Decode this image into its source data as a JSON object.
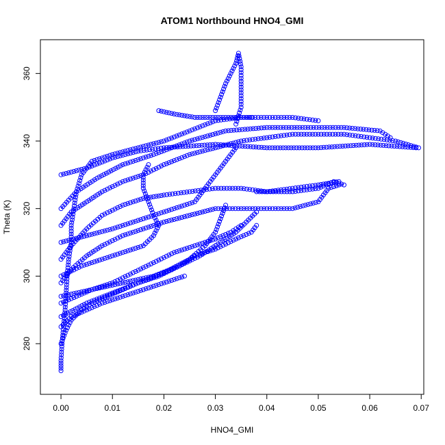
{
  "chart_data": {
    "type": "scatter",
    "title": "ATOM1 Northbound HNO4_GMI",
    "xlabel": "HNO4_GMI",
    "ylabel": "Theta (K)",
    "xlim": [
      -0.004,
      0.0705
    ],
    "ylim": [
      265,
      370
    ],
    "x_ticks": [
      0.0,
      0.01,
      0.02,
      0.03,
      0.04,
      0.05,
      0.06,
      0.07
    ],
    "x_tick_labels": [
      "0.00",
      "0.01",
      "0.02",
      "0.03",
      "0.04",
      "0.05",
      "0.06",
      "0.07"
    ],
    "y_ticks": [
      280,
      300,
      320,
      340,
      360
    ],
    "y_tick_labels": [
      "280",
      "300",
      "320",
      "340",
      "360"
    ],
    "grid": false,
    "marker": "open-circle",
    "color": "#0000ff",
    "series": [
      {
        "values": [
          [
            0.0,
            272
          ],
          [
            0.0,
            275
          ],
          [
            0.0002,
            280
          ],
          [
            0.0005,
            285
          ],
          [
            0.0008,
            290
          ],
          [
            0.001,
            295
          ],
          [
            0.0012,
            300
          ],
          [
            0.0015,
            305
          ],
          [
            0.002,
            310
          ],
          [
            0.002,
            315
          ],
          [
            0.0025,
            320
          ],
          [
            0.003,
            325
          ],
          [
            0.004,
            330
          ],
          [
            0.006,
            334
          ],
          [
            0.01,
            336
          ],
          [
            0.015,
            338
          ],
          [
            0.02,
            340
          ],
          [
            0.025,
            343
          ],
          [
            0.03,
            346
          ],
          [
            0.035,
            347
          ],
          [
            0.04,
            347
          ],
          [
            0.045,
            347
          ],
          [
            0.05,
            346
          ]
        ]
      },
      {
        "values": [
          [
            0.0,
            280
          ],
          [
            0.001,
            284
          ],
          [
            0.002,
            287
          ],
          [
            0.004,
            290
          ],
          [
            0.006,
            292
          ],
          [
            0.009,
            294
          ],
          [
            0.012,
            296
          ],
          [
            0.015,
            298
          ],
          [
            0.019,
            300
          ],
          [
            0.023,
            303
          ],
          [
            0.027,
            306
          ],
          [
            0.031,
            310
          ],
          [
            0.034,
            313
          ],
          [
            0.036,
            316
          ],
          [
            0.038,
            319
          ]
        ]
      },
      {
        "values": [
          [
            0.0,
            292
          ],
          [
            0.003,
            294
          ],
          [
            0.006,
            296
          ],
          [
            0.01,
            298
          ],
          [
            0.014,
            301
          ],
          [
            0.018,
            304
          ],
          [
            0.022,
            307
          ],
          [
            0.026,
            309
          ],
          [
            0.03,
            311
          ],
          [
            0.033,
            313
          ],
          [
            0.035,
            315
          ]
        ]
      },
      {
        "values": [
          [
            0.0,
            298
          ],
          [
            0.002,
            302
          ],
          [
            0.005,
            306
          ],
          [
            0.008,
            309
          ],
          [
            0.012,
            312
          ],
          [
            0.016,
            314
          ],
          [
            0.02,
            316
          ],
          [
            0.025,
            318
          ],
          [
            0.03,
            320
          ],
          [
            0.035,
            320
          ],
          [
            0.04,
            320
          ],
          [
            0.045,
            320
          ],
          [
            0.05,
            322
          ],
          [
            0.052,
            326
          ],
          [
            0.054,
            327
          ]
        ]
      },
      {
        "values": [
          [
            0.0,
            305
          ],
          [
            0.002,
            309
          ],
          [
            0.005,
            314
          ],
          [
            0.008,
            318
          ],
          [
            0.012,
            321
          ],
          [
            0.016,
            323
          ],
          [
            0.02,
            324
          ],
          [
            0.025,
            325
          ],
          [
            0.03,
            326
          ],
          [
            0.035,
            326
          ],
          [
            0.04,
            325
          ],
          [
            0.045,
            326
          ],
          [
            0.05,
            327
          ],
          [
            0.054,
            328
          ]
        ]
      },
      {
        "values": [
          [
            0.0,
            315
          ],
          [
            0.002,
            319
          ],
          [
            0.005,
            322
          ],
          [
            0.008,
            325
          ],
          [
            0.012,
            328
          ],
          [
            0.016,
            330
          ],
          [
            0.02,
            333
          ],
          [
            0.025,
            336
          ],
          [
            0.03,
            338
          ],
          [
            0.035,
            340
          ],
          [
            0.04,
            341
          ],
          [
            0.045,
            342
          ],
          [
            0.05,
            342
          ],
          [
            0.055,
            342
          ],
          [
            0.06,
            341
          ],
          [
            0.065,
            340
          ],
          [
            0.0695,
            338
          ]
        ]
      },
      {
        "values": [
          [
            0.0,
            320
          ],
          [
            0.003,
            325
          ],
          [
            0.007,
            329
          ],
          [
            0.012,
            333
          ],
          [
            0.018,
            336
          ],
          [
            0.025,
            340
          ],
          [
            0.032,
            343
          ],
          [
            0.04,
            344
          ],
          [
            0.048,
            344
          ],
          [
            0.055,
            344
          ],
          [
            0.062,
            343
          ],
          [
            0.064,
            341
          ]
        ]
      },
      {
        "values": [
          [
            0.0,
            300
          ],
          [
            0.004,
            303
          ],
          [
            0.008,
            305
          ],
          [
            0.012,
            307
          ],
          [
            0.016,
            309
          ],
          [
            0.018,
            312
          ],
          [
            0.019,
            315
          ],
          [
            0.018,
            318
          ],
          [
            0.017,
            322
          ],
          [
            0.016,
            326
          ],
          [
            0.016,
            330
          ],
          [
            0.017,
            333
          ]
        ]
      },
      {
        "values": [
          [
            0.0,
            310
          ],
          [
            0.005,
            312
          ],
          [
            0.01,
            314
          ],
          [
            0.014,
            316
          ],
          [
            0.018,
            318
          ],
          [
            0.022,
            320
          ],
          [
            0.026,
            322
          ],
          [
            0.028,
            326
          ],
          [
            0.03,
            330
          ],
          [
            0.032,
            334
          ],
          [
            0.034,
            338
          ]
        ]
      },
      {
        "values": [
          [
            0.0,
            288
          ],
          [
            0.005,
            292
          ],
          [
            0.01,
            295
          ],
          [
            0.015,
            298
          ],
          [
            0.02,
            301
          ],
          [
            0.025,
            305
          ],
          [
            0.028,
            309
          ],
          [
            0.03,
            313
          ],
          [
            0.031,
            317
          ],
          [
            0.032,
            321
          ]
        ]
      },
      {
        "values": [
          [
            0.019,
            349
          ],
          [
            0.022,
            348
          ],
          [
            0.026,
            347
          ],
          [
            0.03,
            347
          ],
          [
            0.033,
            347
          ],
          [
            0.037,
            347
          ]
        ]
      },
      {
        "values": [
          [
            0.03,
            349
          ],
          [
            0.031,
            353
          ],
          [
            0.032,
            357
          ],
          [
            0.033,
            360
          ],
          [
            0.034,
            363
          ],
          [
            0.0345,
            366
          ],
          [
            0.035,
            362
          ],
          [
            0.035,
            356
          ],
          [
            0.035,
            350
          ],
          [
            0.034,
            345
          ]
        ]
      },
      {
        "values": [
          [
            0.038,
            325
          ],
          [
            0.045,
            325
          ],
          [
            0.05,
            326
          ],
          [
            0.053,
            328
          ],
          [
            0.055,
            327
          ]
        ]
      },
      {
        "values": [
          [
            0.0,
            330
          ],
          [
            0.005,
            332
          ],
          [
            0.01,
            335
          ],
          [
            0.015,
            337
          ],
          [
            0.02,
            338
          ],
          [
            0.03,
            339
          ],
          [
            0.04,
            338
          ],
          [
            0.05,
            338
          ],
          [
            0.06,
            339
          ],
          [
            0.069,
            338
          ]
        ]
      },
      {
        "values": [
          [
            0.0,
            294
          ],
          [
            0.006,
            296
          ],
          [
            0.012,
            298
          ],
          [
            0.018,
            300
          ],
          [
            0.023,
            303
          ],
          [
            0.026,
            306
          ],
          [
            0.03,
            308
          ],
          [
            0.034,
            311
          ],
          [
            0.037,
            313
          ],
          [
            0.038,
            315
          ]
        ]
      },
      {
        "values": [
          [
            0.0,
            285
          ],
          [
            0.002,
            288
          ],
          [
            0.005,
            290
          ],
          [
            0.008,
            292
          ],
          [
            0.012,
            294
          ],
          [
            0.016,
            296
          ],
          [
            0.02,
            298
          ],
          [
            0.024,
            300
          ]
        ]
      }
    ]
  }
}
